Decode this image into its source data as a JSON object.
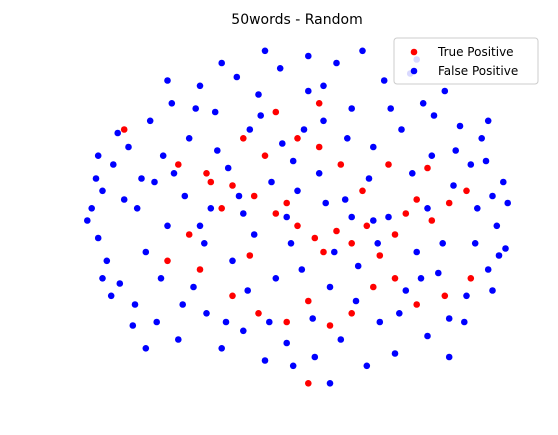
{
  "chart_data": {
    "type": "scatter",
    "title": "50words - Random",
    "xlabel": "",
    "ylabel": "",
    "xlim": [
      -1.05,
      1.05
    ],
    "ylim": [
      -1.0,
      1.0
    ],
    "axes_visible": false,
    "grid": false,
    "legend": {
      "placement": "top-right",
      "entries": [
        "True Positive",
        "False Positive"
      ]
    },
    "series": [
      {
        "name": "True Positive",
        "color": "#ff0000",
        "points": [
          [
            -0.8,
            0.5
          ],
          [
            -0.55,
            0.3
          ],
          [
            -0.42,
            0.25
          ],
          [
            -0.3,
            0.18
          ],
          [
            -0.35,
            0.05
          ],
          [
            -0.2,
            0.12
          ],
          [
            -0.1,
            0.02
          ],
          [
            -0.05,
            0.08
          ],
          [
            0.0,
            -0.05
          ],
          [
            0.08,
            -0.12
          ],
          [
            0.12,
            -0.2
          ],
          [
            0.18,
            -0.08
          ],
          [
            0.25,
            -0.15
          ],
          [
            0.32,
            -0.05
          ],
          [
            0.38,
            -0.22
          ],
          [
            0.45,
            -0.1
          ],
          [
            0.5,
            0.02
          ],
          [
            0.55,
            0.1
          ],
          [
            0.62,
            -0.02
          ],
          [
            0.7,
            0.08
          ],
          [
            0.78,
            0.15
          ],
          [
            0.3,
            0.15
          ],
          [
            0.2,
            0.3
          ],
          [
            0.1,
            0.4
          ],
          [
            0.0,
            0.45
          ],
          [
            -0.15,
            0.35
          ],
          [
            -0.25,
            0.45
          ],
          [
            -0.4,
            0.2
          ],
          [
            -0.5,
            -0.1
          ],
          [
            -0.45,
            -0.3
          ],
          [
            -0.3,
            -0.45
          ],
          [
            -0.18,
            -0.55
          ],
          [
            -0.05,
            -0.6
          ],
          [
            0.05,
            -0.48
          ],
          [
            0.15,
            -0.62
          ],
          [
            0.25,
            -0.55
          ],
          [
            0.35,
            -0.4
          ],
          [
            0.45,
            -0.35
          ],
          [
            0.55,
            -0.5
          ],
          [
            0.68,
            -0.45
          ],
          [
            0.05,
            -0.95
          ],
          [
            -0.22,
            -0.22
          ],
          [
            0.42,
            0.3
          ],
          [
            0.6,
            0.28
          ],
          [
            -0.1,
            0.6
          ],
          [
            0.1,
            0.65
          ],
          [
            -0.6,
            -0.25
          ],
          [
            0.8,
            -0.35
          ]
        ]
      },
      {
        "name": "False Positive",
        "color": "#0000ff",
        "points": [
          [
            -0.95,
            0.05
          ],
          [
            -0.92,
            -0.12
          ],
          [
            -0.9,
            0.15
          ],
          [
            -0.88,
            -0.25
          ],
          [
            -0.85,
            0.3
          ],
          [
            -0.82,
            -0.38
          ],
          [
            -0.8,
            0.1
          ],
          [
            -0.78,
            0.4
          ],
          [
            -0.75,
            -0.5
          ],
          [
            -0.72,
            0.22
          ],
          [
            -0.7,
            -0.2
          ],
          [
            -0.68,
            0.55
          ],
          [
            -0.65,
            -0.6
          ],
          [
            -0.62,
            0.35
          ],
          [
            -0.6,
            -0.05
          ],
          [
            -0.58,
            0.65
          ],
          [
            -0.55,
            -0.7
          ],
          [
            -0.52,
            0.12
          ],
          [
            -0.5,
            0.45
          ],
          [
            -0.48,
            -0.4
          ],
          [
            -0.45,
            0.75
          ],
          [
            -0.42,
            -0.55
          ],
          [
            -0.4,
            0.05
          ],
          [
            -0.38,
            0.6
          ],
          [
            -0.35,
            -0.75
          ],
          [
            -0.32,
            0.28
          ],
          [
            -0.3,
            -0.25
          ],
          [
            -0.28,
            0.8
          ],
          [
            -0.25,
            -0.65
          ],
          [
            -0.22,
            0.5
          ],
          [
            -0.2,
            -0.1
          ],
          [
            -0.18,
            0.7
          ],
          [
            -0.15,
            -0.82
          ],
          [
            -0.12,
            0.2
          ],
          [
            -0.1,
            -0.35
          ],
          [
            -0.08,
            0.85
          ],
          [
            -0.05,
            -0.72
          ],
          [
            -0.02,
            0.32
          ],
          [
            0.0,
            0.15
          ],
          [
            0.02,
            -0.3
          ],
          [
            0.05,
            0.72
          ],
          [
            0.08,
            -0.8
          ],
          [
            0.1,
            0.25
          ],
          [
            0.12,
            0.55
          ],
          [
            0.15,
            -0.4
          ],
          [
            0.18,
            0.88
          ],
          [
            0.2,
            -0.7
          ],
          [
            0.22,
            0.1
          ],
          [
            0.25,
            0.62
          ],
          [
            0.28,
            -0.28
          ],
          [
            0.3,
            0.95
          ],
          [
            0.32,
            -0.85
          ],
          [
            0.35,
            0.4
          ],
          [
            0.38,
            -0.6
          ],
          [
            0.4,
            0.78
          ],
          [
            0.42,
            0.0
          ],
          [
            0.45,
            -0.78
          ],
          [
            0.48,
            0.5
          ],
          [
            0.5,
            -0.42
          ],
          [
            0.52,
            0.82
          ],
          [
            0.55,
            -0.2
          ],
          [
            0.58,
            0.65
          ],
          [
            0.6,
            -0.68
          ],
          [
            0.62,
            0.35
          ],
          [
            0.65,
            -0.32
          ],
          [
            0.68,
            0.72
          ],
          [
            0.7,
            -0.58
          ],
          [
            0.72,
            0.18
          ],
          [
            0.75,
            0.52
          ],
          [
            0.78,
            -0.45
          ],
          [
            0.8,
            0.3
          ],
          [
            0.82,
            -0.15
          ],
          [
            0.85,
            0.45
          ],
          [
            0.88,
            -0.3
          ],
          [
            0.9,
            0.12
          ],
          [
            0.92,
            -0.05
          ],
          [
            0.95,
            0.2
          ],
          [
            0.96,
            -0.18
          ],
          [
            -0.97,
            -0.02
          ],
          [
            -0.93,
            0.22
          ],
          [
            -0.86,
            -0.45
          ],
          [
            -0.83,
            0.48
          ],
          [
            -0.76,
            -0.62
          ],
          [
            -0.74,
            0.05
          ],
          [
            -0.66,
            0.2
          ],
          [
            -0.63,
            -0.35
          ],
          [
            -0.57,
            0.25
          ],
          [
            -0.53,
            -0.5
          ],
          [
            -0.47,
            0.62
          ],
          [
            -0.43,
            -0.15
          ],
          [
            -0.37,
            0.38
          ],
          [
            -0.33,
            -0.6
          ],
          [
            -0.27,
            0.12
          ],
          [
            -0.23,
            -0.42
          ],
          [
            -0.17,
            0.58
          ],
          [
            -0.13,
            -0.6
          ],
          [
            -0.07,
            0.42
          ],
          [
            -0.03,
            -0.15
          ],
          [
            0.03,
            0.5
          ],
          [
            0.07,
            -0.58
          ],
          [
            0.13,
            0.08
          ],
          [
            0.17,
            -0.2
          ],
          [
            0.23,
            0.45
          ],
          [
            0.27,
            -0.48
          ],
          [
            0.33,
            0.22
          ],
          [
            0.37,
            -0.15
          ],
          [
            0.43,
            0.62
          ],
          [
            0.47,
            -0.55
          ],
          [
            0.53,
            0.25
          ],
          [
            0.57,
            -0.35
          ],
          [
            0.63,
            0.58
          ],
          [
            0.67,
            -0.15
          ],
          [
            0.73,
            0.38
          ],
          [
            0.77,
            -0.6
          ],
          [
            0.83,
            0.05
          ],
          [
            0.87,
            0.32
          ],
          [
            0.93,
            -0.22
          ],
          [
            0.97,
            0.08
          ],
          [
            -0.15,
            0.95
          ],
          [
            0.05,
            0.92
          ],
          [
            0.15,
            -0.95
          ],
          [
            -0.35,
            0.88
          ],
          [
            0.55,
            0.9
          ],
          [
            -0.6,
            0.78
          ],
          [
            0.7,
            -0.8
          ],
          [
            -0.7,
            -0.75
          ],
          [
            0.88,
            0.55
          ],
          [
            -0.9,
            -0.35
          ],
          [
            0.9,
            -0.42
          ],
          [
            -0.92,
            0.35
          ],
          [
            0.25,
            0.0
          ],
          [
            -0.05,
            0.0
          ],
          [
            0.35,
            -0.02
          ],
          [
            -0.25,
            0.02
          ],
          [
            0.6,
            0.05
          ],
          [
            -0.45,
            -0.05
          ],
          [
            0.12,
            0.75
          ],
          [
            -0.02,
            -0.85
          ]
        ]
      }
    ]
  }
}
